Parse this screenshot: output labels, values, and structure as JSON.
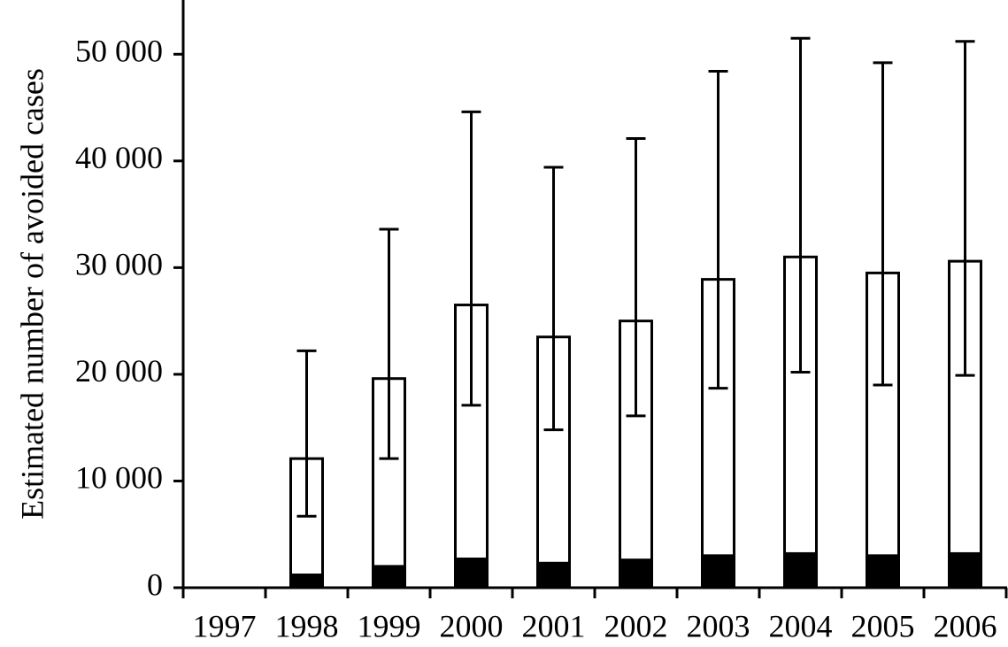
{
  "chart_data": {
    "type": "stacked-bar-errorbar",
    "y_label": "Estimated number of avoided cases",
    "categories": [
      "1997",
      "1998",
      "1999",
      "2000",
      "2001",
      "2002",
      "2003",
      "2004",
      "2005",
      "2006"
    ],
    "series": [
      {
        "color": "#000000",
        "values": [
          null,
          1200,
          2000,
          2700,
          2300,
          2600,
          3000,
          3200,
          3000,
          3200
        ]
      },
      {
        "color": "#ffffff",
        "values": [
          null,
          10900,
          17600,
          23800,
          21200,
          22400,
          25900,
          27800,
          26500,
          27400
        ]
      }
    ],
    "error_lower": [
      null,
      6700,
      12100,
      17100,
      14800,
      16100,
      18700,
      20200,
      19000,
      19900
    ],
    "error_upper": [
      null,
      22200,
      33600,
      44600,
      39400,
      42100,
      48400,
      51500,
      49200,
      51200
    ],
    "ylim": [
      0,
      55000
    ],
    "yticks": [
      0,
      {
        "value": 10000,
        "label": "10 000"
      },
      {
        "value": 20000,
        "label": "20 000"
      },
      {
        "value": 30000,
        "label": "30 000"
      },
      {
        "value": 40000,
        "label": "40 000"
      },
      {
        "value": 50000,
        "label": "50 000"
      }
    ]
  }
}
